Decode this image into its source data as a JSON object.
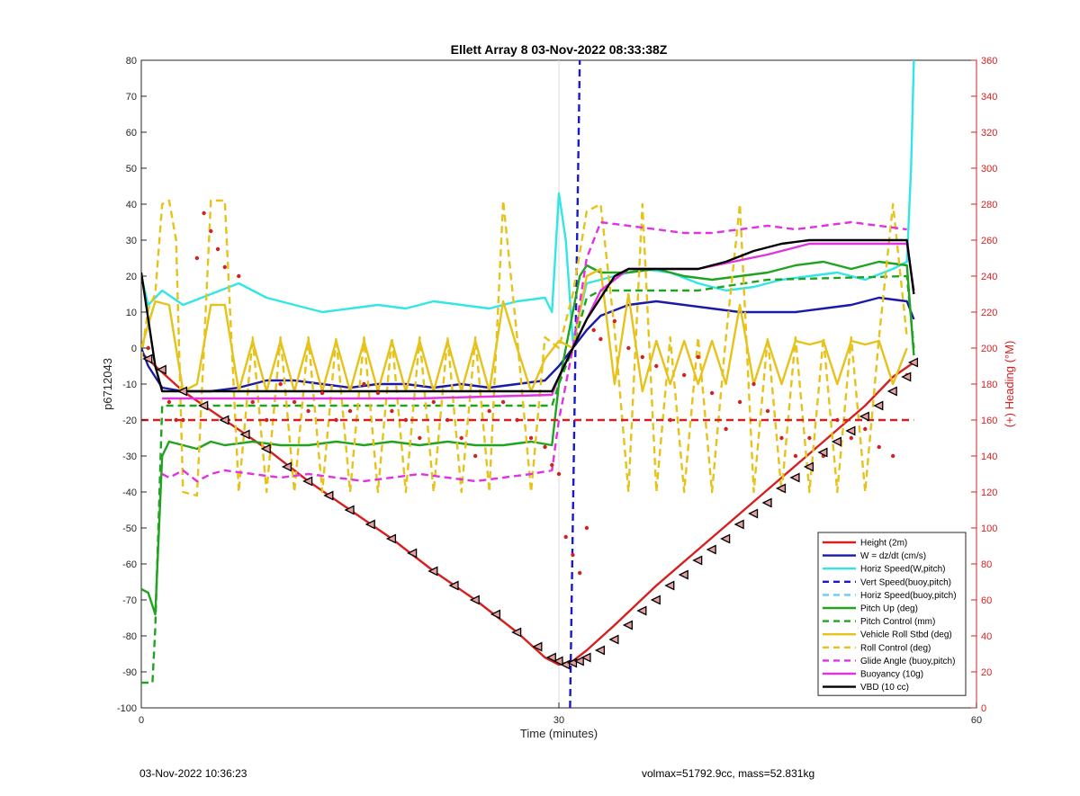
{
  "chart_data": {
    "type": "line",
    "title": "Ellett Array 8 03-Nov-2022 08:33:38Z",
    "xlabel": "Time (minutes)",
    "ylabel": "p6712043",
    "y2label": "(+) Heading (°M)",
    "xlim": [
      0,
      60
    ],
    "ylim": [
      -100,
      80
    ],
    "y2lim": [
      0,
      360
    ],
    "xticks": [
      0,
      30,
      60
    ],
    "yticks": [
      -100,
      -90,
      -80,
      -70,
      -60,
      -50,
      -40,
      -30,
      -20,
      -10,
      0,
      10,
      20,
      30,
      40,
      50,
      60,
      70,
      80
    ],
    "y2ticks": [
      0,
      20,
      40,
      60,
      80,
      100,
      120,
      140,
      160,
      180,
      200,
      220,
      240,
      260,
      280,
      300,
      320,
      340,
      360
    ],
    "legend_position": "bottom-right",
    "grid": false,
    "series": [
      {
        "name": "Height (2m)",
        "color": "#d62020",
        "style": "solid",
        "x": [
          0.2,
          1,
          3,
          6,
          9,
          12,
          15,
          18,
          21,
          24,
          27,
          29,
          30,
          31,
          32,
          34,
          37,
          40,
          43,
          46,
          49,
          52,
          54,
          55.5
        ],
        "y": [
          -2,
          -5,
          -12,
          -20,
          -28,
          -37,
          -45,
          -53,
          -62,
          -70,
          -79,
          -86,
          -88,
          -87,
          -84,
          -77,
          -66,
          -56,
          -46,
          -36,
          -26,
          -16,
          -8,
          -4
        ]
      },
      {
        "name": "W = dz/dt (cm/s)",
        "color": "#1a1aa6",
        "style": "solid",
        "x": [
          0,
          0.5,
          1.5,
          3,
          5,
          7,
          9,
          11,
          13,
          15,
          17,
          19,
          21,
          23,
          25,
          27,
          29,
          30,
          31,
          32,
          33,
          35,
          37,
          39,
          41,
          43,
          45,
          47,
          49,
          51,
          53,
          55,
          55.5
        ],
        "y": [
          0,
          -5,
          -11,
          -12,
          -12,
          -11,
          -9,
          -9,
          -10,
          -11,
          -10,
          -10,
          -11,
          -10,
          -11,
          -10,
          -9,
          -5,
          0,
          5,
          9,
          12,
          13,
          12,
          11,
          10,
          10,
          10,
          11,
          12,
          14,
          13,
          8
        ]
      },
      {
        "name": "Horiz Speed(W,pitch)",
        "color": "#33e6e6",
        "style": "solid",
        "x": [
          0,
          0.5,
          1.5,
          3,
          5,
          7,
          9,
          11,
          13,
          15,
          17,
          19,
          21,
          23,
          25,
          27,
          29,
          29.5,
          30,
          30.5,
          31,
          32,
          34,
          36,
          38,
          40,
          42,
          44,
          46,
          48,
          50,
          52,
          54,
          55,
          55.3,
          55.5
        ],
        "y": [
          20,
          12,
          16,
          12,
          15,
          18,
          14,
          12,
          10,
          11,
          12,
          11,
          13,
          12,
          11,
          13,
          14,
          10,
          43,
          30,
          2,
          18,
          20,
          22,
          21,
          18,
          16,
          17,
          19,
          20,
          21,
          19,
          22,
          24,
          50,
          80
        ]
      },
      {
        "name": "Vert Speed(buoy,pitch)",
        "color": "#1a1acc",
        "style": "dashed",
        "x": [
          30.8,
          31.5
        ],
        "y": [
          -100,
          80
        ]
      },
      {
        "name": "Horiz Speed(buoy,pitch)",
        "color": "#66ccff",
        "style": "dashed",
        "x": [],
        "y": []
      },
      {
        "name": "Pitch Up (deg)",
        "color": "#21a321",
        "style": "solid",
        "x": [
          0,
          0.5,
          1,
          1.5,
          2,
          3,
          4,
          5,
          6,
          8,
          10,
          12,
          14,
          16,
          18,
          20,
          22,
          24,
          26,
          28,
          29.5,
          30,
          30.5,
          31,
          31.5,
          32,
          33,
          35,
          37,
          39,
          41,
          43,
          45,
          47,
          49,
          51,
          53,
          55,
          55.5
        ],
        "y": [
          -67,
          -68,
          -74,
          -30,
          -26,
          -27,
          -28,
          -26,
          -27,
          -26,
          -27,
          -27,
          -26,
          -27,
          -26,
          -27,
          -26,
          -27,
          -27,
          -26,
          -27,
          -10,
          0,
          10,
          20,
          23,
          21,
          21,
          22,
          20,
          19,
          20,
          21,
          23,
          24,
          22,
          24,
          23,
          -2
        ]
      },
      {
        "name": "Pitch Control (mm)",
        "color": "#21a321",
        "style": "dashed",
        "x": [
          0,
          0.8,
          1,
          1.5,
          2,
          10,
          20,
          29.5,
          30,
          31,
          32,
          33,
          40,
          45,
          55,
          55.5
        ],
        "y": [
          -93,
          -93,
          -78,
          -16,
          -16,
          -16,
          -16,
          -16,
          -10,
          0,
          14,
          16,
          16,
          19,
          20,
          0
        ]
      },
      {
        "name": "Vehicle Roll Stbd (deg)",
        "color": "#e6c21a",
        "style": "solid",
        "x": [
          0,
          1,
          2,
          3,
          4,
          5,
          6,
          7,
          8,
          9,
          10,
          11,
          12,
          13,
          14,
          15,
          16,
          17,
          18,
          19,
          20,
          21,
          22,
          23,
          24,
          25,
          26,
          27,
          28,
          29,
          30,
          31,
          32,
          33,
          34,
          35,
          36,
          37,
          38,
          39,
          40,
          41,
          42,
          43,
          44,
          45,
          46,
          47,
          48,
          49,
          50,
          51,
          52,
          53,
          54,
          55
        ],
        "y": [
          0,
          13,
          12,
          -12,
          -10,
          12,
          12,
          -12,
          2,
          -12,
          2,
          -12,
          2,
          -12,
          2,
          -12,
          2,
          -12,
          2,
          -12,
          2,
          -12,
          2,
          -12,
          2,
          -12,
          13,
          0,
          -12,
          -3,
          2,
          0,
          20,
          22,
          -10,
          15,
          -12,
          2,
          -10,
          2,
          -10,
          2,
          -10,
          12,
          -10,
          2,
          -10,
          2,
          1,
          2,
          -10,
          2,
          1,
          2,
          -10,
          0
        ]
      },
      {
        "name": "Roll Control (deg)",
        "color": "#e6c21a",
        "style": "dashed",
        "x": [
          0,
          0.5,
          1,
          1.5,
          2,
          2.5,
          3,
          4,
          5,
          6,
          7,
          8,
          9,
          10,
          11,
          12,
          13,
          14,
          15,
          16,
          17,
          18,
          19,
          20,
          21,
          22,
          23,
          24,
          25,
          26,
          27,
          28,
          29,
          30,
          31,
          32,
          33,
          34,
          35,
          36,
          37,
          38,
          39,
          40,
          41,
          42,
          43,
          44,
          45,
          46,
          47,
          48,
          49,
          50,
          51,
          52,
          53,
          54,
          55
        ],
        "y": [
          -3,
          11,
          15,
          40,
          41,
          30,
          -40,
          -41,
          41,
          41,
          -40,
          3,
          -40,
          3,
          -40,
          3,
          -40,
          3,
          -40,
          3,
          -40,
          3,
          -40,
          3,
          -40,
          3,
          -40,
          3,
          -40,
          41,
          3,
          -40,
          3,
          0,
          15,
          38,
          40,
          5,
          -40,
          40,
          -40,
          3,
          -40,
          3,
          -40,
          3,
          40,
          -40,
          3,
          -40,
          3,
          -40,
          3,
          -40,
          3,
          -40,
          3,
          40,
          3
        ]
      },
      {
        "name": "Glide Angle (buoy,pitch)",
        "color": "#e033e0",
        "style": "dashed",
        "x": [
          1.5,
          2,
          3,
          4,
          5,
          6,
          8,
          10,
          12,
          14,
          16,
          18,
          20,
          22,
          24,
          26,
          28,
          29.5,
          30,
          31,
          32,
          33,
          35,
          37,
          39,
          41,
          43,
          45,
          47,
          49,
          51,
          53,
          55
        ],
        "y": [
          -35,
          -36,
          -34,
          -37,
          -35,
          -34,
          -35,
          -36,
          -35,
          -36,
          -37,
          -36,
          -35,
          -36,
          -37,
          -36,
          -35,
          -34,
          -20,
          0,
          25,
          35,
          34,
          33,
          32,
          32,
          33,
          34,
          33,
          34,
          35,
          34,
          33
        ]
      },
      {
        "name": "Buoyancy (10g)",
        "color": "#e033e0",
        "style": "solid",
        "x": [
          1.5,
          10,
          20,
          29.5,
          30,
          31,
          32,
          33,
          35,
          40,
          45,
          48,
          55,
          55.5
        ],
        "y": [
          -14,
          -14,
          -14,
          -13,
          -8,
          0,
          8,
          16,
          22,
          22,
          26,
          29,
          29,
          16
        ]
      },
      {
        "name": "VBD (10 cc)",
        "color": "#000000",
        "style": "solid",
        "x": [
          0,
          1,
          1.5,
          29.5,
          30,
          31,
          32,
          33,
          34,
          35,
          40,
          42,
          44,
          46,
          48,
          50,
          55,
          55.5
        ],
        "y": [
          21,
          -5,
          -12,
          -12,
          -8,
          0,
          8,
          14,
          20,
          22,
          22,
          24,
          27,
          29,
          30,
          30,
          30,
          15
        ]
      },
      {
        "name": "Heading reference",
        "color": "#d62020",
        "style": "dashed",
        "axis": "right",
        "legend": false,
        "x": [
          0,
          55.5
        ],
        "y": [
          160,
          160
        ]
      },
      {
        "name": "Heading (°M)",
        "color": "#d62020",
        "style": "dots",
        "axis": "right",
        "legend": false,
        "x": [
          0.5,
          2,
          2.5,
          3,
          4,
          4.5,
          5,
          5.5,
          6,
          7,
          8,
          9,
          10,
          11,
          12,
          13,
          14,
          15,
          16,
          17,
          18,
          19,
          20,
          21,
          22,
          23,
          24,
          25,
          26,
          27,
          28,
          29,
          29.5,
          30,
          30.5,
          31,
          31.5,
          32,
          32.5,
          33,
          34,
          35,
          36,
          37,
          38,
          39,
          40,
          41,
          42,
          43,
          44,
          45,
          46,
          47,
          48,
          49,
          50,
          51,
          52,
          53,
          54,
          55
        ],
        "y": [
          200,
          170,
          160,
          160,
          250,
          275,
          265,
          255,
          245,
          240,
          170,
          160,
          180,
          170,
          165,
          175,
          160,
          165,
          180,
          175,
          165,
          160,
          150,
          170,
          160,
          150,
          140,
          165,
          170,
          160,
          150,
          145,
          135,
          130,
          95,
          85,
          75,
          100,
          210,
          205,
          215,
          200,
          195,
          190,
          160,
          185,
          195,
          175,
          155,
          170,
          180,
          165,
          150,
          140,
          150,
          140,
          160,
          150,
          155,
          145,
          140,
          185
        ]
      },
      {
        "name": "Height markers",
        "color": "#000000",
        "style": "triangles",
        "legend": false,
        "x": [
          0.5,
          1.5,
          3,
          4.5,
          6,
          7.5,
          9,
          10.5,
          12,
          13.5,
          15,
          16.5,
          18,
          19.5,
          21,
          22.5,
          24,
          25.5,
          27,
          28.5,
          29.5,
          30,
          30.5,
          31,
          31.5,
          32,
          33,
          34,
          35,
          36,
          37,
          38,
          39,
          40,
          41,
          42,
          43,
          44,
          45,
          46,
          47,
          48,
          49,
          50,
          51,
          52,
          53,
          54,
          55,
          55.5
        ],
        "y": [
          -3,
          -6,
          -12,
          -16,
          -20,
          -24,
          -28,
          -33,
          -37,
          -41,
          -45,
          -49,
          -53,
          -57,
          -62,
          -66,
          -70,
          -74,
          -79,
          -83,
          -86,
          -87,
          -88,
          -87.5,
          -87,
          -86,
          -84,
          -81,
          -77,
          -73,
          -70,
          -66,
          -63,
          -59,
          -56,
          -53,
          -49,
          -46,
          -43,
          -39,
          -36,
          -33,
          -29,
          -26,
          -23,
          -19,
          -16,
          -12,
          -8,
          -4
        ]
      }
    ]
  },
  "footer": {
    "timestamp": "03-Nov-2022 10:36:23",
    "info": "volmax=51792.9cc, mass=52.831kg"
  }
}
